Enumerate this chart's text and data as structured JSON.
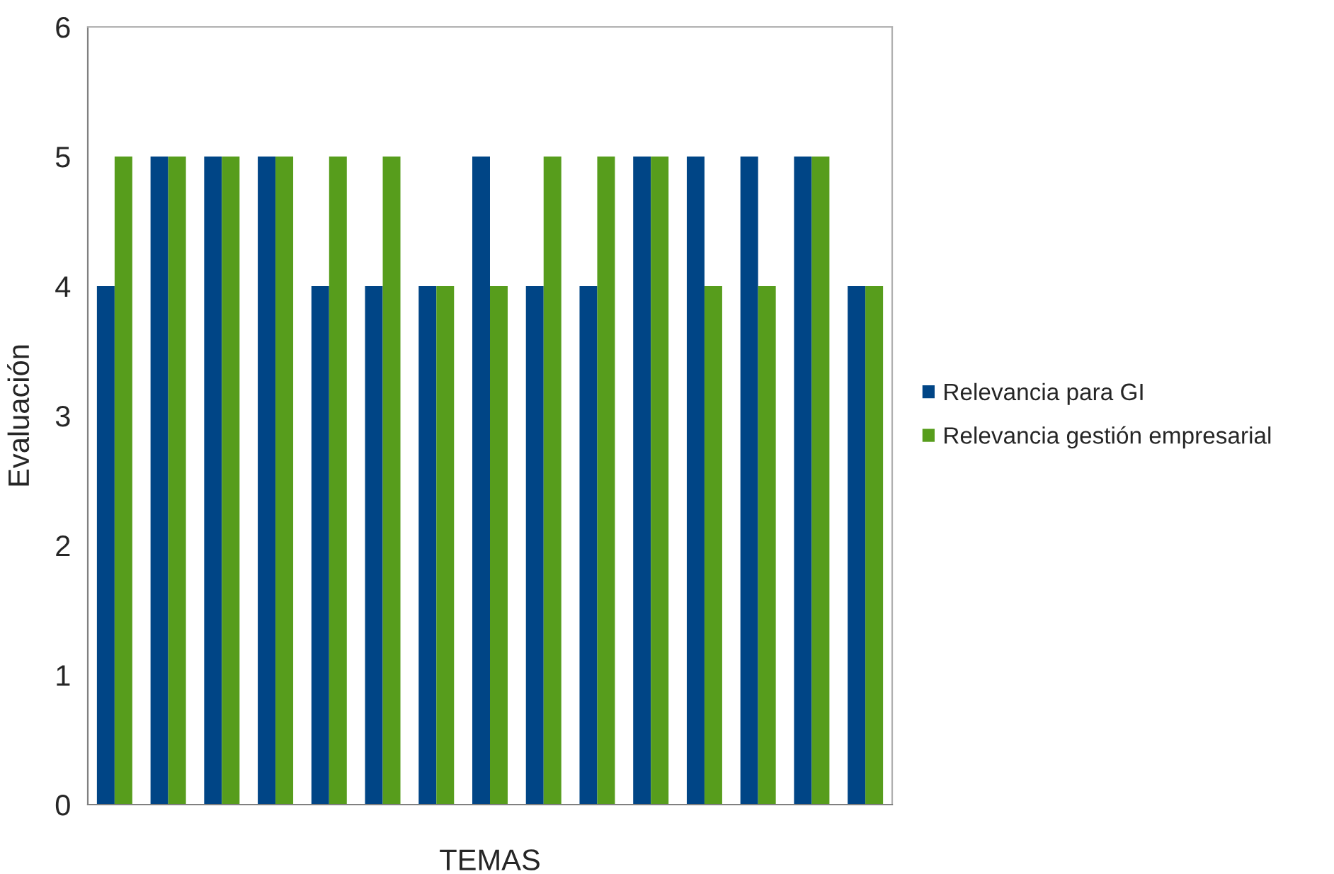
{
  "chart_data": {
    "type": "bar",
    "xlabel": "TEMAS",
    "ylabel": "Evaluación",
    "categories": [
      null,
      null,
      null,
      null,
      null,
      null,
      null,
      null,
      null,
      null,
      null,
      null,
      null,
      null,
      null
    ],
    "series": [
      {
        "name": "Relevancia para GI",
        "color": "#004586",
        "values": [
          4,
          5,
          5,
          5,
          4,
          4,
          4,
          5,
          4,
          4,
          5,
          5,
          5,
          5,
          4
        ]
      },
      {
        "name": "Relevancia gestión empresarial",
        "color": "#579d1c",
        "values": [
          5,
          5,
          5,
          5,
          5,
          5,
          4,
          4,
          5,
          5,
          5,
          4,
          4,
          5,
          4
        ]
      }
    ],
    "ylim": [
      0,
      6
    ],
    "yticks": [
      0,
      1,
      2,
      3,
      4,
      5,
      6
    ],
    "grid": false,
    "legend": "right"
  }
}
